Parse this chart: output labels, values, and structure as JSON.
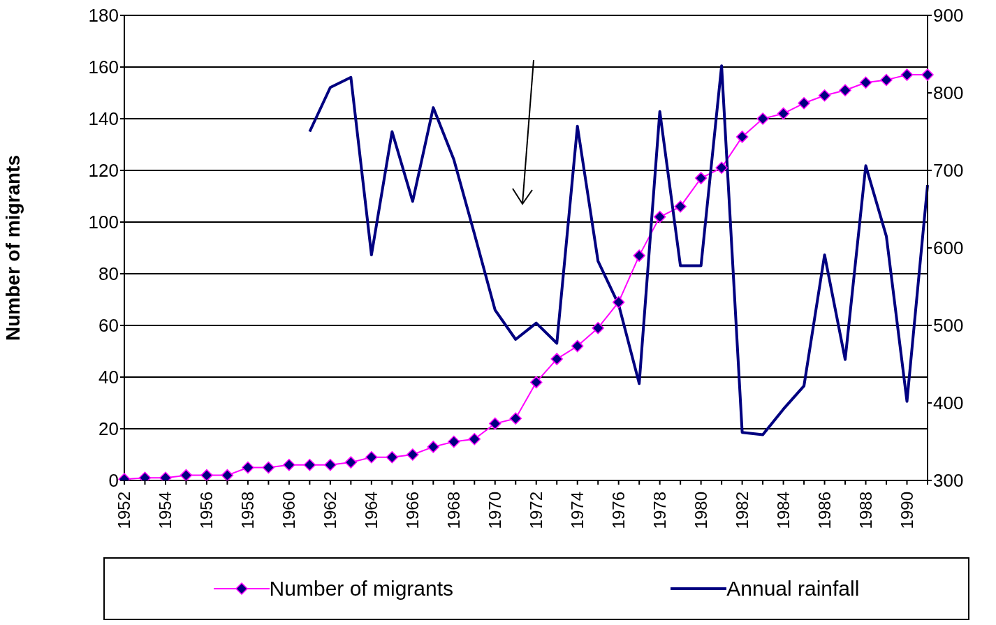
{
  "chart_data": {
    "type": "line",
    "categories": [
      "1952",
      null,
      "1954",
      null,
      "1956",
      null,
      "1958",
      null,
      "1960",
      null,
      "1962",
      null,
      "1964",
      null,
      "1966",
      null,
      "1968",
      null,
      "1970",
      null,
      "1972",
      null,
      "1974",
      null,
      "1976",
      null,
      "1978",
      null,
      "1980",
      null,
      "1982",
      null,
      "1984",
      null,
      "1986",
      null,
      "1988",
      null,
      "1990",
      null
    ],
    "series": [
      {
        "name": "Number of migrants",
        "color": "#ff00ff",
        "marker": "diamond",
        "values": [
          0.5,
          1,
          1,
          2,
          2,
          2,
          5,
          5,
          6,
          6,
          6,
          7,
          9,
          9,
          10,
          13,
          15,
          16,
          22,
          24,
          38,
          47,
          52,
          59,
          69,
          87,
          102,
          106,
          117,
          121,
          133,
          140,
          142,
          146,
          149,
          151,
          154,
          155,
          157,
          157
        ]
      },
      {
        "name": "Annual rainfall",
        "color": "#000080",
        "axis": "y2",
        "values": [
          null,
          null,
          null,
          null,
          null,
          null,
          null,
          null,
          null,
          750,
          807,
          820,
          591,
          750,
          660,
          781,
          714,
          618,
          520,
          482,
          503,
          477,
          757,
          583,
          527,
          425,
          776,
          577,
          577,
          835,
          362,
          359,
          392,
          422,
          591,
          456,
          706,
          615,
          402,
          681
        ]
      }
    ],
    "ylabel": "Number of migrants",
    "ylim": [
      0,
      180
    ],
    "yticks": [
      0,
      20,
      40,
      60,
      80,
      100,
      120,
      140,
      160,
      180
    ],
    "y2lim": [
      300,
      900
    ],
    "y2ticks": [
      300,
      400,
      500,
      600,
      700,
      800,
      900
    ],
    "grid": "y",
    "legend": "bottom",
    "line_style": "solid"
  }
}
